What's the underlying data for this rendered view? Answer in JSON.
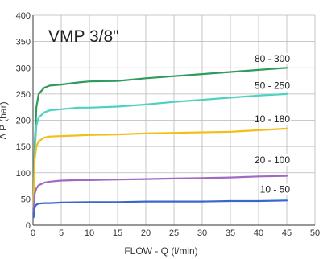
{
  "chart_data": {
    "type": "line",
    "title": "VMP 3/8\"",
    "xlabel": "FLOW - Q (l/min)",
    "ylabel": "Δ P (bar)",
    "xlim": [
      0,
      50
    ],
    "ylim": [
      0,
      400
    ],
    "xticks": [
      0,
      5,
      10,
      15,
      20,
      25,
      30,
      35,
      40,
      45,
      50
    ],
    "yticks": [
      0,
      50,
      100,
      150,
      200,
      250,
      300,
      350,
      400
    ],
    "grid": true,
    "legend": "none",
    "series": [
      {
        "name": "80 - 300",
        "color": "#2e9a5c",
        "label_at": [
          45,
          311
        ],
        "points": [
          [
            0.1,
            45
          ],
          [
            0.3,
            150
          ],
          [
            0.6,
            225
          ],
          [
            1,
            250
          ],
          [
            2,
            262
          ],
          [
            3,
            266
          ],
          [
            5,
            268
          ],
          [
            8,
            272
          ],
          [
            10,
            274
          ],
          [
            15,
            275
          ],
          [
            20,
            280
          ],
          [
            25,
            284
          ],
          [
            30,
            288
          ],
          [
            35,
            292
          ],
          [
            40,
            296
          ],
          [
            45,
            300
          ]
        ]
      },
      {
        "name": "50 - 250",
        "color": "#4fd1c0",
        "label_at": [
          45,
          260
        ],
        "points": [
          [
            0.1,
            40
          ],
          [
            0.3,
            140
          ],
          [
            0.6,
            190
          ],
          [
            1,
            205
          ],
          [
            2,
            215
          ],
          [
            3,
            219
          ],
          [
            5,
            221
          ],
          [
            8,
            224
          ],
          [
            10,
            224
          ],
          [
            15,
            226
          ],
          [
            20,
            230
          ],
          [
            25,
            235
          ],
          [
            30,
            239
          ],
          [
            35,
            243
          ],
          [
            40,
            247
          ],
          [
            45,
            250
          ]
        ]
      },
      {
        "name": "10 - 180",
        "color": "#f2bf1a",
        "label_at": [
          45,
          196
        ],
        "points": [
          [
            0.1,
            35
          ],
          [
            0.3,
            125
          ],
          [
            0.6,
            150
          ],
          [
            1,
            160
          ],
          [
            2,
            167
          ],
          [
            3,
            169
          ],
          [
            5,
            170
          ],
          [
            8,
            171
          ],
          [
            10,
            172
          ],
          [
            15,
            173
          ],
          [
            20,
            175
          ],
          [
            25,
            176
          ],
          [
            30,
            177
          ],
          [
            35,
            178
          ],
          [
            40,
            181
          ],
          [
            45,
            184
          ]
        ]
      },
      {
        "name": "20 - 100",
        "color": "#a269c4",
        "label_at": [
          45,
          118
        ],
        "points": [
          [
            0.1,
            25
          ],
          [
            0.3,
            60
          ],
          [
            0.6,
            70
          ],
          [
            1,
            76
          ],
          [
            2,
            81
          ],
          [
            3,
            83
          ],
          [
            5,
            85
          ],
          [
            8,
            86
          ],
          [
            10,
            86
          ],
          [
            15,
            87
          ],
          [
            20,
            88
          ],
          [
            25,
            89
          ],
          [
            30,
            90
          ],
          [
            35,
            91
          ],
          [
            40,
            93
          ],
          [
            45,
            94
          ]
        ]
      },
      {
        "name": "10 - 50",
        "color": "#3a68c8",
        "label_at": [
          45,
          62
        ],
        "points": [
          [
            0.1,
            15
          ],
          [
            0.3,
            35
          ],
          [
            0.6,
            39
          ],
          [
            1,
            41
          ],
          [
            2,
            42
          ],
          [
            3,
            42
          ],
          [
            5,
            43
          ],
          [
            10,
            44
          ],
          [
            15,
            44
          ],
          [
            20,
            45
          ],
          [
            25,
            45
          ],
          [
            30,
            45
          ],
          [
            35,
            46
          ],
          [
            40,
            46
          ],
          [
            45,
            47
          ]
        ]
      }
    ]
  }
}
